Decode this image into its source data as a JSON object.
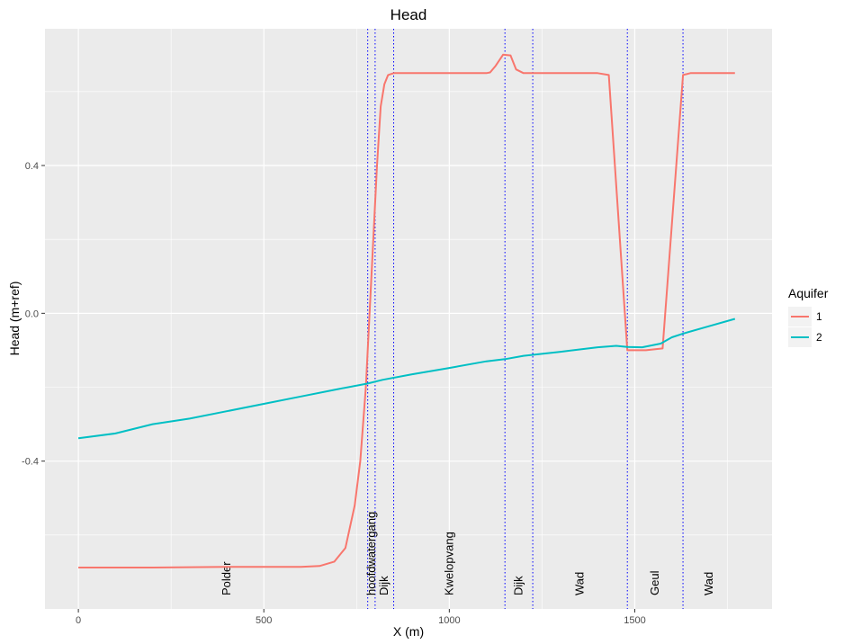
{
  "chart_data": {
    "type": "line",
    "title": "Head",
    "xlabel": "X (m)",
    "ylabel": "Head (m+ref)",
    "xlim": [
      -90,
      1870
    ],
    "ylim": [
      -0.8,
      0.77
    ],
    "x_ticks": [
      0,
      500,
      1000,
      1500
    ],
    "x_tick_labels": [
      "0",
      "500",
      "1000",
      "1500"
    ],
    "y_ticks": [
      -0.4,
      0.0,
      0.4
    ],
    "y_tick_labels": [
      "-0.4",
      "0.0",
      "0.4"
    ],
    "grid": true,
    "legend": {
      "title": "Aquifer",
      "placement": "right",
      "entries": [
        {
          "label": "1",
          "color": "#F8766D"
        },
        {
          "label": "2",
          "color": "#00BFC4"
        }
      ]
    },
    "series": [
      {
        "name": "1",
        "color": "#F8766D",
        "x": [
          0,
          200,
          400,
          600,
          650,
          690,
          720,
          745,
          760,
          775,
          790,
          805,
          815,
          825,
          835,
          850,
          900,
          1000,
          1100,
          1110,
          1125,
          1145,
          1165,
          1180,
          1200,
          1250,
          1300,
          1400,
          1430,
          1480,
          1530,
          1575,
          1630,
          1650,
          1700,
          1770
        ],
        "y": [
          -0.688,
          -0.688,
          -0.686,
          -0.686,
          -0.684,
          -0.672,
          -0.635,
          -0.52,
          -0.4,
          -0.2,
          0.1,
          0.4,
          0.56,
          0.62,
          0.645,
          0.65,
          0.65,
          0.65,
          0.65,
          0.652,
          0.67,
          0.7,
          0.698,
          0.66,
          0.65,
          0.65,
          0.65,
          0.65,
          0.645,
          -0.1,
          -0.1,
          -0.095,
          0.645,
          0.65,
          0.65,
          0.65
        ]
      },
      {
        "name": "2",
        "color": "#00BFC4",
        "x": [
          0,
          100,
          200,
          300,
          400,
          500,
          600,
          700,
          780,
          820,
          900,
          1000,
          1100,
          1150,
          1200,
          1300,
          1400,
          1450,
          1480,
          1520,
          1570,
          1600,
          1630,
          1700,
          1770
        ],
        "y": [
          -0.338,
          -0.325,
          -0.3,
          -0.285,
          -0.265,
          -0.245,
          -0.225,
          -0.205,
          -0.19,
          -0.18,
          -0.165,
          -0.148,
          -0.13,
          -0.124,
          -0.115,
          -0.104,
          -0.092,
          -0.088,
          -0.091,
          -0.092,
          -0.082,
          -0.065,
          -0.055,
          -0.035,
          -0.015
        ]
      }
    ],
    "boundaries": [
      780,
      800,
      850,
      1150,
      1225,
      1480,
      1630
    ],
    "boundary_color": "#0000FF",
    "zones": [
      {
        "label": "Polder",
        "x": 400
      },
      {
        "label": "hoofdwatergang",
        "x": 790
      },
      {
        "label": "Dijk",
        "x": 825
      },
      {
        "label": "Kwelopvang",
        "x": 1000
      },
      {
        "label": "Dijk",
        "x": 1187
      },
      {
        "label": "Wad",
        "x": 1352
      },
      {
        "label": "Geul",
        "x": 1555
      },
      {
        "label": "Wad",
        "x": 1700
      }
    ]
  }
}
